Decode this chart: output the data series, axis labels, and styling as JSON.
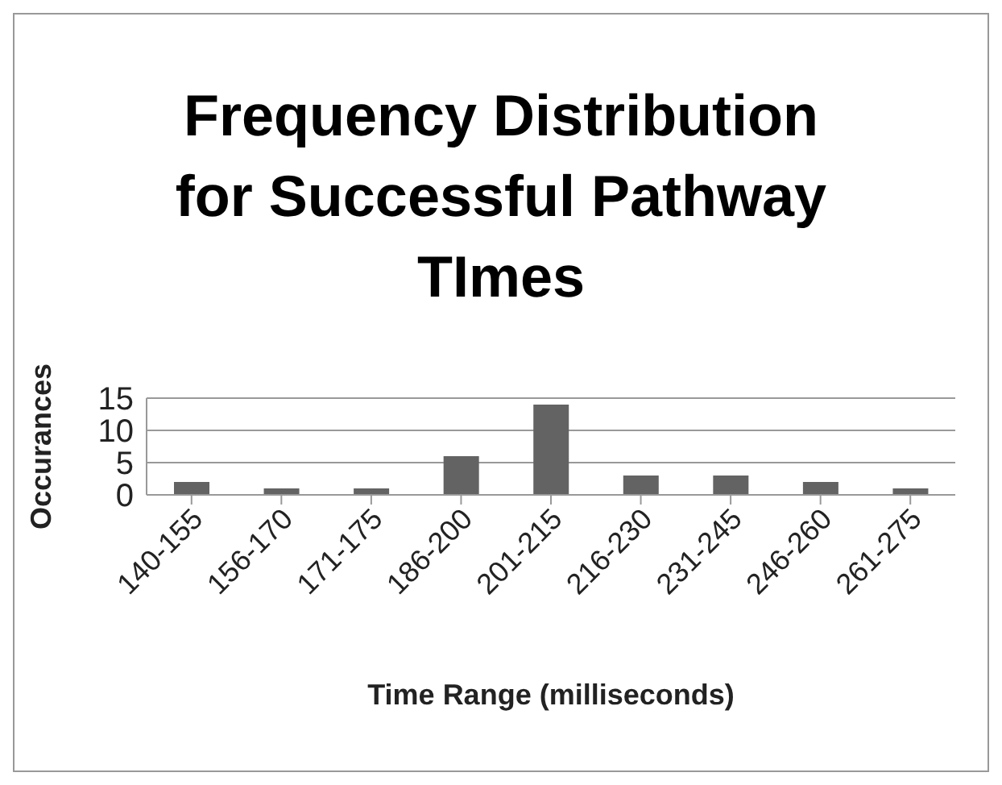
{
  "chart_data": {
    "type": "bar",
    "title": "Frequency Distribution for Successful Pathway TImes",
    "xlabel": "Time Range (milliseconds)",
    "ylabel": "Occurances",
    "categories": [
      "140-155",
      "156-170",
      "171-175",
      "186-200",
      "201-215",
      "216-230",
      "231-245",
      "246-260",
      "261-275"
    ],
    "values": [
      2,
      1,
      1,
      6,
      14,
      3,
      3,
      2,
      1
    ],
    "color": "#636363",
    "ylim": [
      0,
      15
    ],
    "yticks": [
      0,
      5,
      10,
      15
    ],
    "grid": "y"
  }
}
